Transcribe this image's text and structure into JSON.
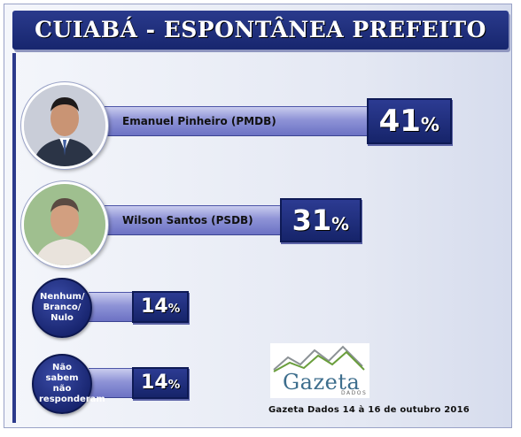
{
  "title": "CUIABÁ - ESPONTÂNEA PREFEITO",
  "chart_data": {
    "type": "bar",
    "title": "CUIABÁ - ESPONTÂNEA PREFEITO",
    "categories": [
      "Emanuel Pinheiro (PMDB)",
      "Wilson Santos (PSDB)",
      "Nenhum/ Branco/ Nulo",
      "Não sabem não responderam"
    ],
    "values": [
      41,
      31,
      14,
      14
    ],
    "value_labels": [
      "41%",
      "31%",
      "14%",
      "14%"
    ],
    "unit": "%",
    "orientation": "horizontal"
  },
  "source": "Gazeta Dados 14 à 16 de outubro 2016",
  "logo": {
    "name": "Gazeta",
    "sub": "DADOS"
  },
  "colors": {
    "title_bg": "#1f2f7d",
    "bar": "#8e93d6",
    "value_box": "#1f2d7a"
  }
}
